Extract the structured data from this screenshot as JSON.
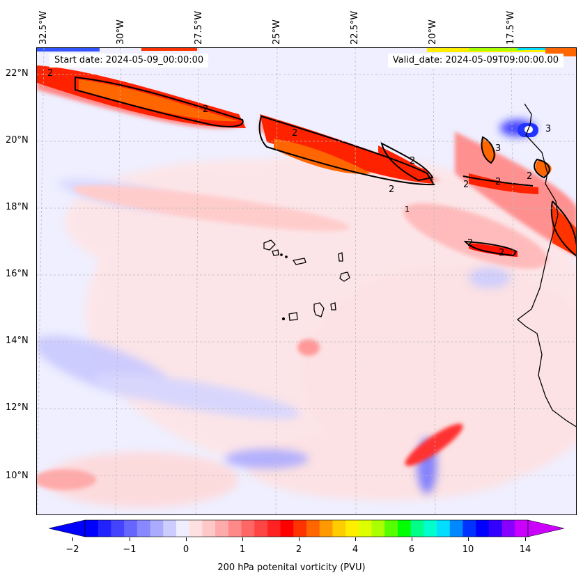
{
  "map": {
    "start_text": "Start date: 2024-05-09_00:00:00",
    "valid_text": "Valid_date: 2024-05-09T09:00:00.00",
    "contour_label": "2",
    "contour_label_3": "3",
    "contour_label_1": "1"
  },
  "lon_labels": [
    "32.5°W",
    "30°W",
    "27.5°W",
    "25°W",
    "22.5°W",
    "20°W",
    "17.5°W"
  ],
  "lat_labels": [
    "22°N",
    "20°N",
    "18°N",
    "16°N",
    "14°N",
    "12°N",
    "10°N"
  ],
  "colorbar": {
    "label": "200 hPa potenital vorticity (PVU)",
    "tick_labels": [
      "−2",
      "−1",
      "0",
      "1",
      "2",
      "4",
      "6",
      "10",
      "14"
    ],
    "colors": [
      "#0000ff",
      "#2222ff",
      "#4444ff",
      "#6666ff",
      "#8888ff",
      "#aaaaff",
      "#ccccff",
      "#eeeeff",
      "#ffe0e0",
      "#ffc8c8",
      "#ffaaaa",
      "#ff8888",
      "#ff6666",
      "#ff4444",
      "#ff2222",
      "#ff0000",
      "#ff3300",
      "#ff6600",
      "#ff9900",
      "#ffcc00",
      "#ffee00",
      "#ddff00",
      "#aaff00",
      "#55ff00",
      "#00ff00",
      "#00ff88",
      "#00ffcc",
      "#00ddff",
      "#0088ff",
      "#0033ff",
      "#0000ff",
      "#3300ff",
      "#8800ff",
      "#cc00ff"
    ],
    "extend_low_color": "#0000ff",
    "extend_high_color": "#cc00ff"
  }
}
